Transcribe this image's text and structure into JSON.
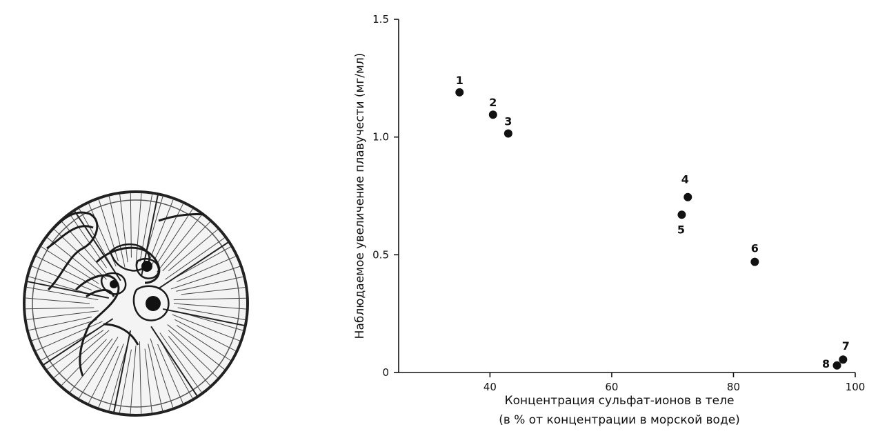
{
  "chart_data": {
    "type": "scatter",
    "x_axis": {
      "label_line1": "Концентрация сульфат-ионов в теле",
      "label_line2": "(в % от концентрации в морской воде)",
      "range": [
        25,
        100
      ],
      "ticks": [
        40,
        60,
        80,
        100
      ]
    },
    "y_axis": {
      "label": "Наблюдаемое увеличение плавучести (мг/мл)",
      "range": [
        0,
        1.5
      ],
      "ticks": [
        {
          "value": 0,
          "label": "0"
        },
        {
          "value": 0.5,
          "label": "0.5"
        },
        {
          "value": 1.0,
          "label": "1.0"
        },
        {
          "value": 1.5,
          "label": "1.5"
        }
      ]
    },
    "grid": false,
    "legend": "none",
    "points": [
      {
        "label": "1",
        "x": 35,
        "y": 1.19
      },
      {
        "label": "2",
        "x": 40.5,
        "y": 1.095
      },
      {
        "label": "3",
        "x": 43,
        "y": 1.015
      },
      {
        "label": "4",
        "x": 72.5,
        "y": 0.745
      },
      {
        "label": "5",
        "x": 71.5,
        "y": 0.67
      },
      {
        "label": "6",
        "x": 83.5,
        "y": 0.47
      },
      {
        "label": "7",
        "x": 98,
        "y": 0.055
      },
      {
        "label": "8",
        "x": 97,
        "y": 0.03
      }
    ],
    "colors": {
      "ink": "#111111",
      "background": "#ffffff"
    }
  },
  "illustration": {
    "icon": "jellyfish-illustration"
  }
}
